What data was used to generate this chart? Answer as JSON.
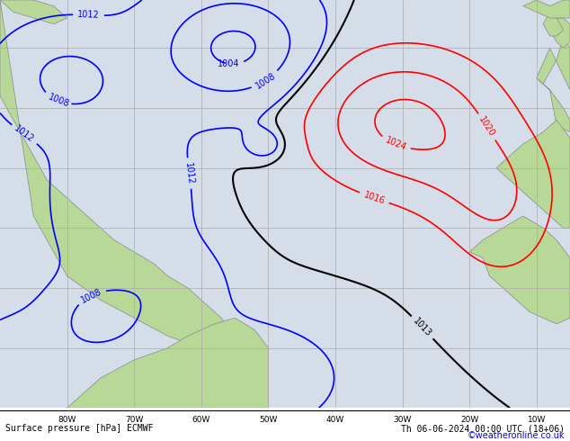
{
  "title_left": "Surface pressure [hPa] ECMWF",
  "title_right": "Th 06-06-2024 00:00 UTC (18+06)",
  "watermark": "©weatheronline.co.uk",
  "bg_color": "#d4dde8",
  "land_color": "#b8d898",
  "land_edge_color": "#888888",
  "grid_color": "#aaaaaa",
  "bottom_bar_color": "#ffffff",
  "fig_width": 6.34,
  "fig_height": 4.9,
  "dpi": 100,
  "xlim": [
    -90,
    -5
  ],
  "ylim": [
    -10,
    58
  ],
  "xticks": [
    -80,
    -70,
    -60,
    -50,
    -40,
    -30,
    -20,
    -10
  ],
  "yticks": [
    0,
    10,
    20,
    30,
    40,
    50
  ],
  "xlabel_labels": [
    "80W",
    "70W",
    "60W",
    "50W",
    "40W",
    "30W",
    "20W",
    "10W"
  ],
  "black_pressure": [
    1013
  ],
  "red_pressure": [
    1016,
    1020,
    1024
  ],
  "blue_pressure": [
    1004,
    1008,
    1012
  ]
}
